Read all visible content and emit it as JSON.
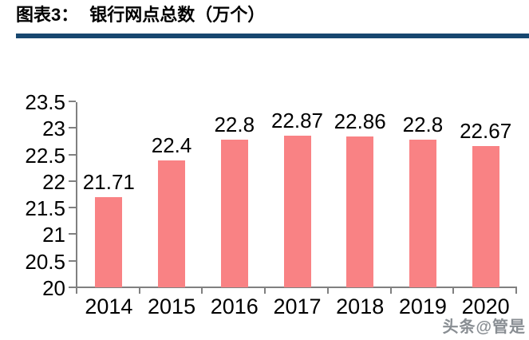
{
  "header": {
    "figure_label": "图表3：",
    "title": "银行网点总数（万个）"
  },
  "colors": {
    "rule_blue": "#17476F",
    "bar_pink": "#F98284",
    "axis_gray": "#808080"
  },
  "chart_data": {
    "type": "bar",
    "title": "银行网点总数（万个）",
    "xlabel": "",
    "ylabel": "",
    "categories": [
      "2014",
      "2015",
      "2016",
      "2017",
      "2018",
      "2019",
      "2020"
    ],
    "values": [
      21.71,
      22.4,
      22.8,
      22.87,
      22.86,
      22.8,
      22.67
    ],
    "value_labels": [
      "21.71",
      "22.4",
      "22.8",
      "22.87",
      "22.86",
      "22.8",
      "22.67"
    ],
    "ylim": [
      20,
      23.5
    ],
    "ytick_step": 0.5,
    "yticks": [
      "23.5",
      "23",
      "22.5",
      "22",
      "21.5",
      "21",
      "20.5",
      "20"
    ],
    "grid": false,
    "legend_position": "none",
    "bar_color": "#F98284",
    "axis_color": "#808080"
  },
  "watermark": {
    "text": "头条@管是"
  }
}
